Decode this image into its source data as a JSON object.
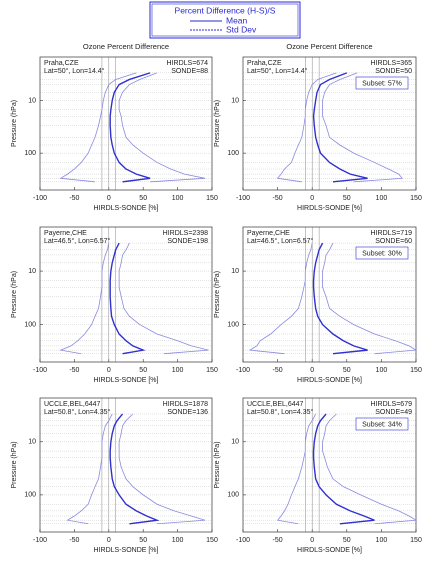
{
  "legend": {
    "title": "Percent Difference (H-S)/S",
    "color": "#2a2ad0",
    "entries": [
      {
        "name": "Mean",
        "style": "solid"
      },
      {
        "name": "Std Dev",
        "style": "dashed"
      }
    ]
  },
  "chart_data": [
    {
      "type": "line",
      "title": "Ozone Percent Difference",
      "station": "Praha,CZE",
      "location": "Lat=50°, Lon=14.4°",
      "hirdls": "HIRDLS=674",
      "sonde": "SONDE=88",
      "x_label": "HIRDLS-SONDE [%]",
      "y_label": "Pressure (hPa)",
      "xlim": [
        -100,
        150
      ],
      "xticks": [
        -100,
        -50,
        0,
        50,
        100,
        150
      ],
      "ylim": [
        1.5,
        500
      ],
      "yticks": [
        10,
        100
      ],
      "log_y": true,
      "grid": true,
      "reference_lines": [
        -10,
        0,
        10
      ],
      "pressure": [
        3,
        4,
        5,
        7,
        10,
        15,
        20,
        30,
        50,
        70,
        100,
        150,
        200,
        250,
        300,
        350
      ],
      "series": [
        {
          "name": "Mean",
          "color": "#3030d0",
          "values": [
            60,
            30,
            15,
            8,
            5,
            3,
            2,
            2,
            3,
            5,
            8,
            15,
            25,
            40,
            60,
            20
          ]
        },
        {
          "name": "Std Dev",
          "color": "#8a8ae0",
          "low": [
            40,
            10,
            0,
            -5,
            -8,
            -10,
            -12,
            -15,
            -20,
            -25,
            -30,
            -40,
            -50,
            -60,
            -70,
            -20
          ],
          "high": [
            70,
            45,
            30,
            20,
            15,
            15,
            18,
            20,
            25,
            35,
            50,
            70,
            90,
            110,
            140,
            60
          ]
        }
      ]
    },
    {
      "type": "line",
      "title": "Ozone Percent Difference",
      "station": "Praha,CZE",
      "location": "Lat=50°, Lon=14.4°",
      "hirdls": "HIRDLS=365",
      "sonde": "SONDE=50",
      "subset": "Subset: 57%",
      "x_label": "HIRDLS-SONDE [%]",
      "y_label": "Pressure (hPa)",
      "xlim": [
        -100,
        150
      ],
      "xticks": [
        -100,
        -50,
        0,
        50,
        100,
        150
      ],
      "ylim": [
        1.5,
        500
      ],
      "yticks": [
        10,
        100
      ],
      "log_y": true,
      "grid": true,
      "reference_lines": [
        -10,
        0,
        10
      ],
      "pressure": [
        3,
        4,
        5,
        7,
        10,
        15,
        20,
        30,
        50,
        70,
        100,
        150,
        200,
        250,
        300,
        350
      ],
      "series": [
        {
          "name": "Mean",
          "color": "#3030d0",
          "values": [
            50,
            25,
            12,
            7,
            5,
            3,
            2,
            3,
            5,
            8,
            12,
            25,
            40,
            55,
            80,
            30
          ]
        },
        {
          "name": "Std Dev",
          "color": "#8a8ae0",
          "low": [
            35,
            8,
            0,
            -5,
            -8,
            -10,
            -10,
            -12,
            -15,
            -20,
            -25,
            -30,
            -40,
            -45,
            -50,
            -15
          ],
          "high": [
            65,
            40,
            25,
            18,
            15,
            15,
            15,
            20,
            25,
            40,
            60,
            90,
            110,
            125,
            130,
            60
          ]
        }
      ]
    },
    {
      "type": "line",
      "station": "Payerne,CHE",
      "location": "Lat=46.5°, Lon=6.57°",
      "hirdls": "HIRDLS=2398",
      "sonde": "SONDE=198",
      "x_label": "HIRDLS-SONDE [%]",
      "y_label": "Pressure (hPa)",
      "xlim": [
        -100,
        150
      ],
      "xticks": [
        -100,
        -50,
        0,
        50,
        100,
        150
      ],
      "ylim": [
        1.5,
        500
      ],
      "yticks": [
        10,
        100
      ],
      "log_y": true,
      "grid": true,
      "reference_lines": [
        -10,
        0,
        10
      ],
      "pressure": [
        3,
        4,
        5,
        7,
        10,
        15,
        20,
        30,
        50,
        70,
        100,
        150,
        200,
        250,
        300,
        350
      ],
      "series": [
        {
          "name": "Mean",
          "color": "#3030d0",
          "values": [
            15,
            10,
            8,
            5,
            3,
            2,
            2,
            2,
            3,
            4,
            8,
            15,
            25,
            35,
            50,
            20
          ]
        },
        {
          "name": "Std Dev",
          "color": "#8a8ae0",
          "low": [
            0,
            -2,
            -5,
            -8,
            -10,
            -10,
            -10,
            -12,
            -15,
            -20,
            -25,
            -35,
            -45,
            -55,
            -70,
            -40
          ],
          "high": [
            30,
            25,
            20,
            18,
            15,
            15,
            15,
            18,
            22,
            30,
            45,
            70,
            100,
            120,
            145,
            80
          ]
        }
      ]
    },
    {
      "type": "line",
      "station": "Payerne,CHE",
      "location": "Lat=46.5°, Lon=6.57°",
      "hirdls": "HIRDLS=719",
      "sonde": "SONDE=60",
      "subset": "Subset: 30%",
      "x_label": "HIRDLS-SONDE [%]",
      "y_label": "Pressure (hPa)",
      "xlim": [
        -100,
        150
      ],
      "xticks": [
        -100,
        -50,
        0,
        50,
        100,
        150
      ],
      "ylim": [
        1.5,
        500
      ],
      "yticks": [
        10,
        100
      ],
      "log_y": true,
      "grid": true,
      "reference_lines": [
        -10,
        0,
        10
      ],
      "pressure": [
        3,
        4,
        5,
        7,
        10,
        15,
        20,
        30,
        50,
        70,
        100,
        150,
        200,
        250,
        300,
        350
      ],
      "series": [
        {
          "name": "Mean",
          "color": "#3030d0",
          "values": [
            15,
            10,
            8,
            5,
            3,
            2,
            2,
            3,
            5,
            8,
            15,
            30,
            45,
            60,
            80,
            30
          ]
        },
        {
          "name": "Std Dev",
          "color": "#8a8ae0",
          "low": [
            0,
            -2,
            -5,
            -8,
            -10,
            -10,
            -12,
            -15,
            -20,
            -30,
            -45,
            -60,
            -75,
            -80,
            -90,
            -40
          ],
          "high": [
            30,
            25,
            20,
            18,
            15,
            15,
            15,
            20,
            25,
            40,
            60,
            90,
            120,
            140,
            150,
            90
          ]
        }
      ]
    },
    {
      "type": "line",
      "station": "UCCLE,BEL,6447",
      "location": "Lat=50.8°, Lon=4.35°",
      "hirdls": "HIRDLS=1878",
      "sonde": "SONDE=136",
      "x_label": "HIRDLS-SONDE [%]",
      "y_label": "Pressure (hPa)",
      "xlim": [
        -100,
        150
      ],
      "xticks": [
        -100,
        -50,
        0,
        50,
        100,
        150
      ],
      "ylim": [
        1.5,
        500
      ],
      "yticks": [
        10,
        100
      ],
      "log_y": true,
      "grid": true,
      "reference_lines": [
        -10,
        0,
        10
      ],
      "pressure": [
        3,
        4,
        5,
        7,
        10,
        15,
        20,
        30,
        50,
        70,
        100,
        150,
        200,
        250,
        300,
        350
      ],
      "series": [
        {
          "name": "Mean",
          "color": "#3030d0",
          "values": [
            20,
            12,
            8,
            5,
            3,
            2,
            2,
            3,
            5,
            8,
            15,
            25,
            40,
            55,
            70,
            30
          ]
        },
        {
          "name": "Std Dev",
          "color": "#8a8ae0",
          "low": [
            5,
            0,
            -5,
            -8,
            -10,
            -10,
            -10,
            -12,
            -15,
            -20,
            -25,
            -30,
            -40,
            -50,
            -60,
            -30
          ],
          "high": [
            35,
            25,
            20,
            18,
            15,
            15,
            15,
            18,
            25,
            35,
            50,
            70,
            95,
            120,
            140,
            70
          ]
        }
      ]
    },
    {
      "type": "line",
      "station": "UCCLE,BEL,6447",
      "location": "Lat=50.8°, Lon=4.35°",
      "hirdls": "HIRDLS=679",
      "sonde": "SONDE=49",
      "subset": "Subset: 34%",
      "x_label": "HIRDLS-SONDE [%]",
      "y_label": "Pressure (hPa)",
      "xlim": [
        -100,
        150
      ],
      "xticks": [
        -100,
        -50,
        0,
        50,
        100,
        150
      ],
      "ylim": [
        1.5,
        500
      ],
      "yticks": [
        10,
        100
      ],
      "log_y": true,
      "grid": true,
      "reference_lines": [
        -10,
        0,
        10
      ],
      "pressure": [
        3,
        4,
        5,
        7,
        10,
        15,
        20,
        30,
        50,
        70,
        100,
        150,
        200,
        250,
        300,
        350
      ],
      "series": [
        {
          "name": "Mean",
          "color": "#3030d0",
          "values": [
            20,
            12,
            8,
            5,
            3,
            2,
            2,
            3,
            5,
            10,
            20,
            35,
            55,
            75,
            90,
            40
          ]
        },
        {
          "name": "Std Dev",
          "color": "#8a8ae0",
          "low": [
            5,
            0,
            -5,
            -8,
            -10,
            -10,
            -12,
            -15,
            -20,
            -25,
            -30,
            -35,
            -40,
            -45,
            -50,
            -20
          ],
          "high": [
            35,
            25,
            20,
            18,
            15,
            15,
            18,
            22,
            30,
            45,
            70,
            100,
            125,
            140,
            150,
            90
          ]
        }
      ]
    }
  ]
}
